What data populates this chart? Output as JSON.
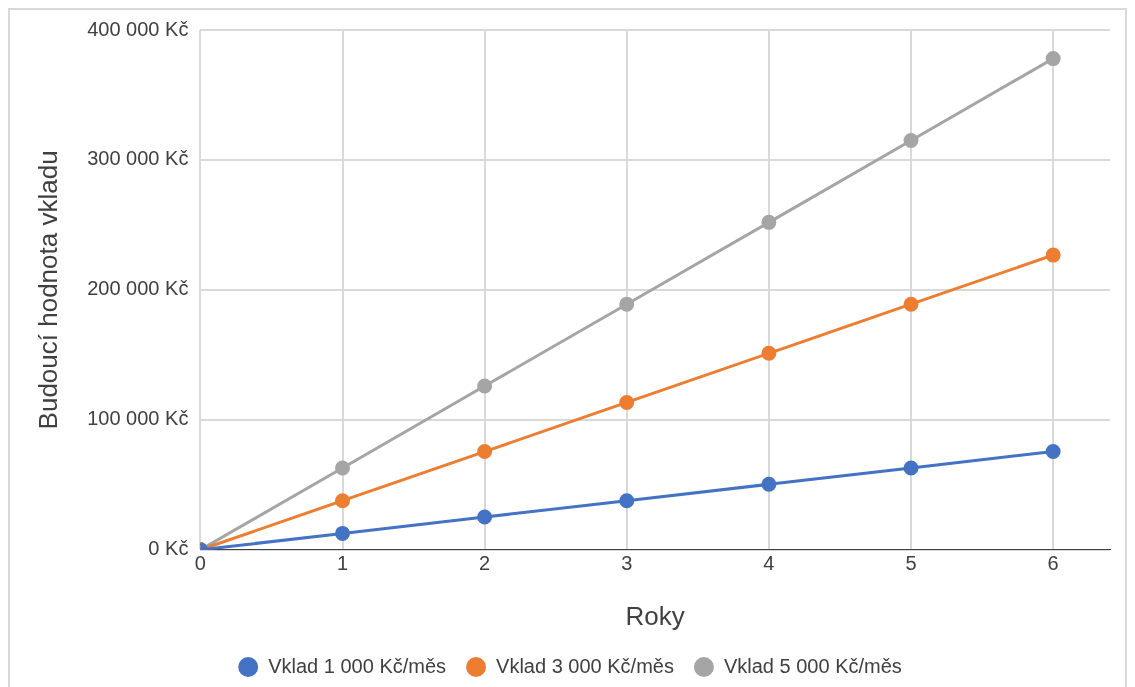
{
  "chart_data": {
    "type": "line",
    "xlabel": "Roky",
    "ylabel": "Budoucí hodnota vkladu",
    "x": [
      0,
      1,
      2,
      3,
      4,
      5,
      6
    ],
    "series": [
      {
        "name": "Vklad 1 000 Kč/měs",
        "color": "#4472c4",
        "values": [
          0,
          12600,
          25200,
          37800,
          50400,
          63000,
          75600
        ]
      },
      {
        "name": "Vklad 3 000 Kč/měs",
        "color": "#ed7d31",
        "values": [
          0,
          37800,
          75600,
          113400,
          151200,
          189000,
          226800
        ]
      },
      {
        "name": "Vklad 5 000 Kč/měs",
        "color": "#a5a5a5",
        "values": [
          0,
          63000,
          126000,
          189000,
          252000,
          315000,
          378000
        ]
      }
    ],
    "xlim": [
      0,
      6.4
    ],
    "xticks": [
      0,
      1,
      2,
      3,
      4,
      5,
      6
    ],
    "ylim": [
      0,
      400000
    ],
    "yticks": [
      {
        "value": 0,
        "label": "0 Kč"
      },
      {
        "value": 100000,
        "label": "100 000 Kč"
      },
      {
        "value": 200000,
        "label": "200 000 Kč"
      },
      {
        "value": 300000,
        "label": "300 000 Kč"
      },
      {
        "value": 400000,
        "label": "400 000 Kč"
      }
    ],
    "grid": true,
    "legend": "bottom",
    "marker": "circle",
    "line_style": "solid"
  }
}
